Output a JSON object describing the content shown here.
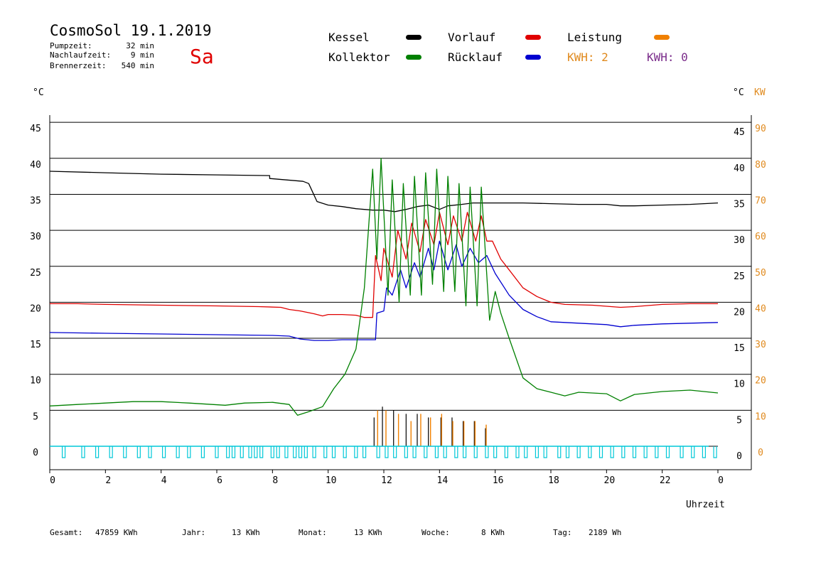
{
  "header": {
    "title": "CosmoSol 19.1.2019",
    "day": "Sa",
    "info": [
      {
        "label": "Pumpzeit:",
        "value": "32 min"
      },
      {
        "label": "Nachlaufzeit:",
        "value": "9 min"
      },
      {
        "label": "Brennerzeit:",
        "value": "540 min"
      }
    ]
  },
  "legend": {
    "items": [
      {
        "label": "Kessel",
        "color": "#000000"
      },
      {
        "label": "Vorlauf",
        "color": "#e00000"
      },
      {
        "label": "Leistung",
        "color": "#f08000"
      },
      {
        "label": "Kollektor",
        "color": "#008000"
      },
      {
        "label": "Rücklauf",
        "color": "#0000d0"
      }
    ],
    "kwh1": {
      "text": "KWH: 2",
      "color": "#e08a1e"
    },
    "kwh2": {
      "text": "KWH: 0",
      "color": "#7b2d8b"
    }
  },
  "axes": {
    "left_unit": "°C",
    "right_unit_c": "°C",
    "right_unit_kw": "KW",
    "x_title": "Uhrzeit"
  },
  "footer": [
    {
      "label": "Gesamt:",
      "value": "47859 KWh"
    },
    {
      "label": "Jahr:",
      "value": "13 KWh"
    },
    {
      "label": "Monat:",
      "value": "13 KWh"
    },
    {
      "label": "Woche:",
      "value": "8 KWh"
    },
    {
      "label": "Tag:",
      "value": "2189 Wh"
    }
  ],
  "chart_data": {
    "type": "line",
    "title": "CosmoSol 19.1.2019",
    "xlabel": "Uhrzeit",
    "ylabel": "°C",
    "xlim": [
      0,
      24
    ],
    "ylim": [
      0,
      45
    ],
    "y2lim": [
      0,
      90
    ],
    "y2label": "KW",
    "x_ticks": [
      "0",
      "2",
      "4",
      "6",
      "8",
      "10",
      "12",
      "14",
      "16",
      "18",
      "20",
      "22",
      "0"
    ],
    "y_ticks": [
      "0",
      "5",
      "10",
      "15",
      "20",
      "25",
      "30",
      "35",
      "40",
      "45"
    ],
    "y2_ticks": [
      "0",
      "10",
      "20",
      "30",
      "40",
      "50",
      "60",
      "70",
      "80",
      "90"
    ],
    "grid": "horizontal",
    "series": [
      {
        "name": "Kessel",
        "color": "#000000",
        "points": [
          [
            0,
            38.2
          ],
          [
            2,
            38.0
          ],
          [
            4,
            37.8
          ],
          [
            6,
            37.7
          ],
          [
            7.9,
            37.6
          ],
          [
            7.9,
            37.2
          ],
          [
            8.5,
            37.0
          ],
          [
            9.1,
            36.8
          ],
          [
            9.3,
            36.5
          ],
          [
            9.6,
            34.0
          ],
          [
            10,
            33.5
          ],
          [
            10.5,
            33.3
          ],
          [
            11,
            33.0
          ],
          [
            11.6,
            32.8
          ],
          [
            12,
            32.8
          ],
          [
            12.4,
            32.6
          ],
          [
            12.8,
            32.9
          ],
          [
            13.2,
            33.3
          ],
          [
            13.6,
            33.5
          ],
          [
            14,
            32.9
          ],
          [
            14.3,
            33.4
          ],
          [
            14.8,
            33.6
          ],
          [
            15.2,
            33.8
          ],
          [
            15.6,
            33.8
          ],
          [
            16,
            33.8
          ],
          [
            17,
            33.8
          ],
          [
            18,
            33.7
          ],
          [
            19,
            33.6
          ],
          [
            20,
            33.6
          ],
          [
            20.5,
            33.4
          ],
          [
            21,
            33.4
          ],
          [
            22,
            33.5
          ],
          [
            23,
            33.6
          ],
          [
            24,
            33.8
          ]
        ]
      },
      {
        "name": "Vorlauf",
        "color": "#e00000",
        "points": [
          [
            0,
            19.8
          ],
          [
            1,
            19.8
          ],
          [
            2,
            19.7
          ],
          [
            4,
            19.6
          ],
          [
            6,
            19.5
          ],
          [
            7.5,
            19.4
          ],
          [
            8.3,
            19.3
          ],
          [
            8.6,
            19.0
          ],
          [
            9,
            18.8
          ],
          [
            9.5,
            18.4
          ],
          [
            9.8,
            18.1
          ],
          [
            10,
            18.3
          ],
          [
            10.5,
            18.3
          ],
          [
            11,
            18.2
          ],
          [
            11.3,
            17.9
          ],
          [
            11.6,
            17.9
          ],
          [
            11.7,
            26.5
          ],
          [
            11.9,
            23.0
          ],
          [
            12.0,
            27.5
          ],
          [
            12.3,
            23.5
          ],
          [
            12.5,
            30.0
          ],
          [
            12.8,
            26.0
          ],
          [
            13.0,
            31.0
          ],
          [
            13.3,
            27.0
          ],
          [
            13.5,
            31.5
          ],
          [
            13.8,
            28.0
          ],
          [
            14.0,
            32.5
          ],
          [
            14.3,
            28.0
          ],
          [
            14.5,
            32.0
          ],
          [
            14.8,
            28.5
          ],
          [
            15.0,
            32.5
          ],
          [
            15.3,
            28.5
          ],
          [
            15.5,
            32.0
          ],
          [
            15.7,
            28.5
          ],
          [
            15.9,
            28.5
          ],
          [
            16.2,
            26.0
          ],
          [
            16.5,
            24.5
          ],
          [
            17,
            22.0
          ],
          [
            17.5,
            20.8
          ],
          [
            18,
            20.0
          ],
          [
            18.5,
            19.7
          ],
          [
            19.5,
            19.6
          ],
          [
            20.5,
            19.3
          ],
          [
            21,
            19.4
          ],
          [
            22,
            19.7
          ],
          [
            23,
            19.8
          ],
          [
            24,
            19.8
          ]
        ]
      },
      {
        "name": "Rücklauf",
        "color": "#0000d0",
        "points": [
          [
            0,
            15.8
          ],
          [
            2,
            15.7
          ],
          [
            4,
            15.6
          ],
          [
            6,
            15.5
          ],
          [
            8,
            15.4
          ],
          [
            8.6,
            15.3
          ],
          [
            9,
            14.9
          ],
          [
            9.5,
            14.7
          ],
          [
            10,
            14.7
          ],
          [
            10.5,
            14.8
          ],
          [
            11,
            14.8
          ],
          [
            11.7,
            14.8
          ],
          [
            11.75,
            18.5
          ],
          [
            12,
            18.8
          ],
          [
            12.1,
            22.0
          ],
          [
            12.3,
            21.0
          ],
          [
            12.6,
            24.5
          ],
          [
            12.8,
            22.0
          ],
          [
            13.1,
            25.5
          ],
          [
            13.3,
            23.5
          ],
          [
            13.6,
            27.5
          ],
          [
            13.8,
            24.5
          ],
          [
            14.0,
            28.5
          ],
          [
            14.3,
            24.5
          ],
          [
            14.6,
            28.0
          ],
          [
            14.8,
            25.0
          ],
          [
            15.1,
            27.5
          ],
          [
            15.4,
            25.5
          ],
          [
            15.7,
            26.5
          ],
          [
            16.0,
            24.0
          ],
          [
            16.5,
            21.0
          ],
          [
            17,
            19.0
          ],
          [
            17.5,
            18.0
          ],
          [
            18,
            17.3
          ],
          [
            19,
            17.1
          ],
          [
            20,
            16.9
          ],
          [
            20.5,
            16.6
          ],
          [
            21,
            16.8
          ],
          [
            22,
            17.0
          ],
          [
            23,
            17.1
          ],
          [
            24,
            17.2
          ]
        ]
      },
      {
        "name": "Kollektor",
        "color": "#008000",
        "points": [
          [
            0,
            5.6
          ],
          [
            1,
            5.8
          ],
          [
            2,
            6.0
          ],
          [
            3,
            6.2
          ],
          [
            4,
            6.2
          ],
          [
            5,
            6.0
          ],
          [
            6.3,
            5.7
          ],
          [
            7,
            6.0
          ],
          [
            8,
            6.1
          ],
          [
            8.6,
            5.8
          ],
          [
            8.9,
            4.3
          ],
          [
            9.3,
            4.8
          ],
          [
            9.8,
            5.5
          ],
          [
            10.2,
            8.0
          ],
          [
            10.6,
            10.0
          ],
          [
            11,
            13.5
          ],
          [
            11.3,
            22.0
          ],
          [
            11.5,
            33.0
          ],
          [
            11.6,
            38.5
          ],
          [
            11.75,
            26.0
          ],
          [
            11.9,
            40.0
          ],
          [
            12.15,
            21.0
          ],
          [
            12.3,
            37.0
          ],
          [
            12.55,
            20.0
          ],
          [
            12.7,
            36.5
          ],
          [
            12.95,
            21.0
          ],
          [
            13.1,
            37.5
          ],
          [
            13.35,
            21.0
          ],
          [
            13.5,
            38.0
          ],
          [
            13.75,
            22.5
          ],
          [
            13.9,
            38.5
          ],
          [
            14.15,
            21.5
          ],
          [
            14.3,
            37.5
          ],
          [
            14.55,
            21.5
          ],
          [
            14.7,
            36.5
          ],
          [
            14.95,
            19.5
          ],
          [
            15.1,
            36.0
          ],
          [
            15.35,
            19.5
          ],
          [
            15.5,
            36.0
          ],
          [
            15.8,
            17.5
          ],
          [
            16.0,
            21.5
          ],
          [
            16.2,
            18.5
          ],
          [
            16.5,
            15.0
          ],
          [
            17,
            9.5
          ],
          [
            17.5,
            8.0
          ],
          [
            18,
            7.5
          ],
          [
            18.5,
            7.0
          ],
          [
            19,
            7.5
          ],
          [
            20,
            7.3
          ],
          [
            20.5,
            6.3
          ],
          [
            21,
            7.2
          ],
          [
            22,
            7.6
          ],
          [
            23,
            7.8
          ],
          [
            24,
            7.4
          ]
        ]
      }
    ],
    "leistung_kw_peaks": [
      [
        11.7,
        10
      ],
      [
        12.0,
        10
      ],
      [
        12.45,
        9
      ],
      [
        12.9,
        7
      ],
      [
        13.25,
        9
      ],
      [
        13.6,
        8
      ],
      [
        14.0,
        9
      ],
      [
        14.4,
        7
      ],
      [
        14.8,
        7
      ],
      [
        15.2,
        7
      ],
      [
        15.6,
        6
      ]
    ],
    "kessel_spikes_kw": [
      [
        11.65,
        8
      ],
      [
        11.95,
        11
      ],
      [
        12.35,
        10
      ],
      [
        12.8,
        9
      ],
      [
        13.2,
        9
      ],
      [
        13.6,
        8
      ],
      [
        14.05,
        8
      ],
      [
        14.45,
        8
      ],
      [
        14.85,
        7
      ],
      [
        15.25,
        7
      ],
      [
        15.65,
        5
      ]
    ],
    "pump_pulses_x": [
      0.5,
      1.2,
      1.7,
      2.2,
      2.7,
      3.2,
      3.6,
      4.1,
      4.6,
      5.0,
      5.5,
      6.0,
      6.4,
      6.6,
      6.9,
      7.2,
      7.4,
      7.6,
      8.0,
      8.2,
      8.5,
      8.8,
      9.0,
      9.2,
      9.5,
      9.9,
      10.2,
      10.6,
      11.0,
      11.3,
      11.8,
      12.1,
      12.4,
      12.8,
      13.1,
      13.5,
      13.9,
      14.2,
      14.6,
      14.9,
      15.3,
      15.7,
      16.0,
      16.4,
      16.8,
      17.1,
      17.5,
      17.8,
      18.3,
      18.6,
      19.0,
      19.4,
      19.8,
      20.2,
      20.6,
      21.0,
      21.4,
      21.8,
      22.2,
      22.7,
      23.1,
      23.5,
      23.9
    ],
    "pump_color": "#00c8d8"
  }
}
